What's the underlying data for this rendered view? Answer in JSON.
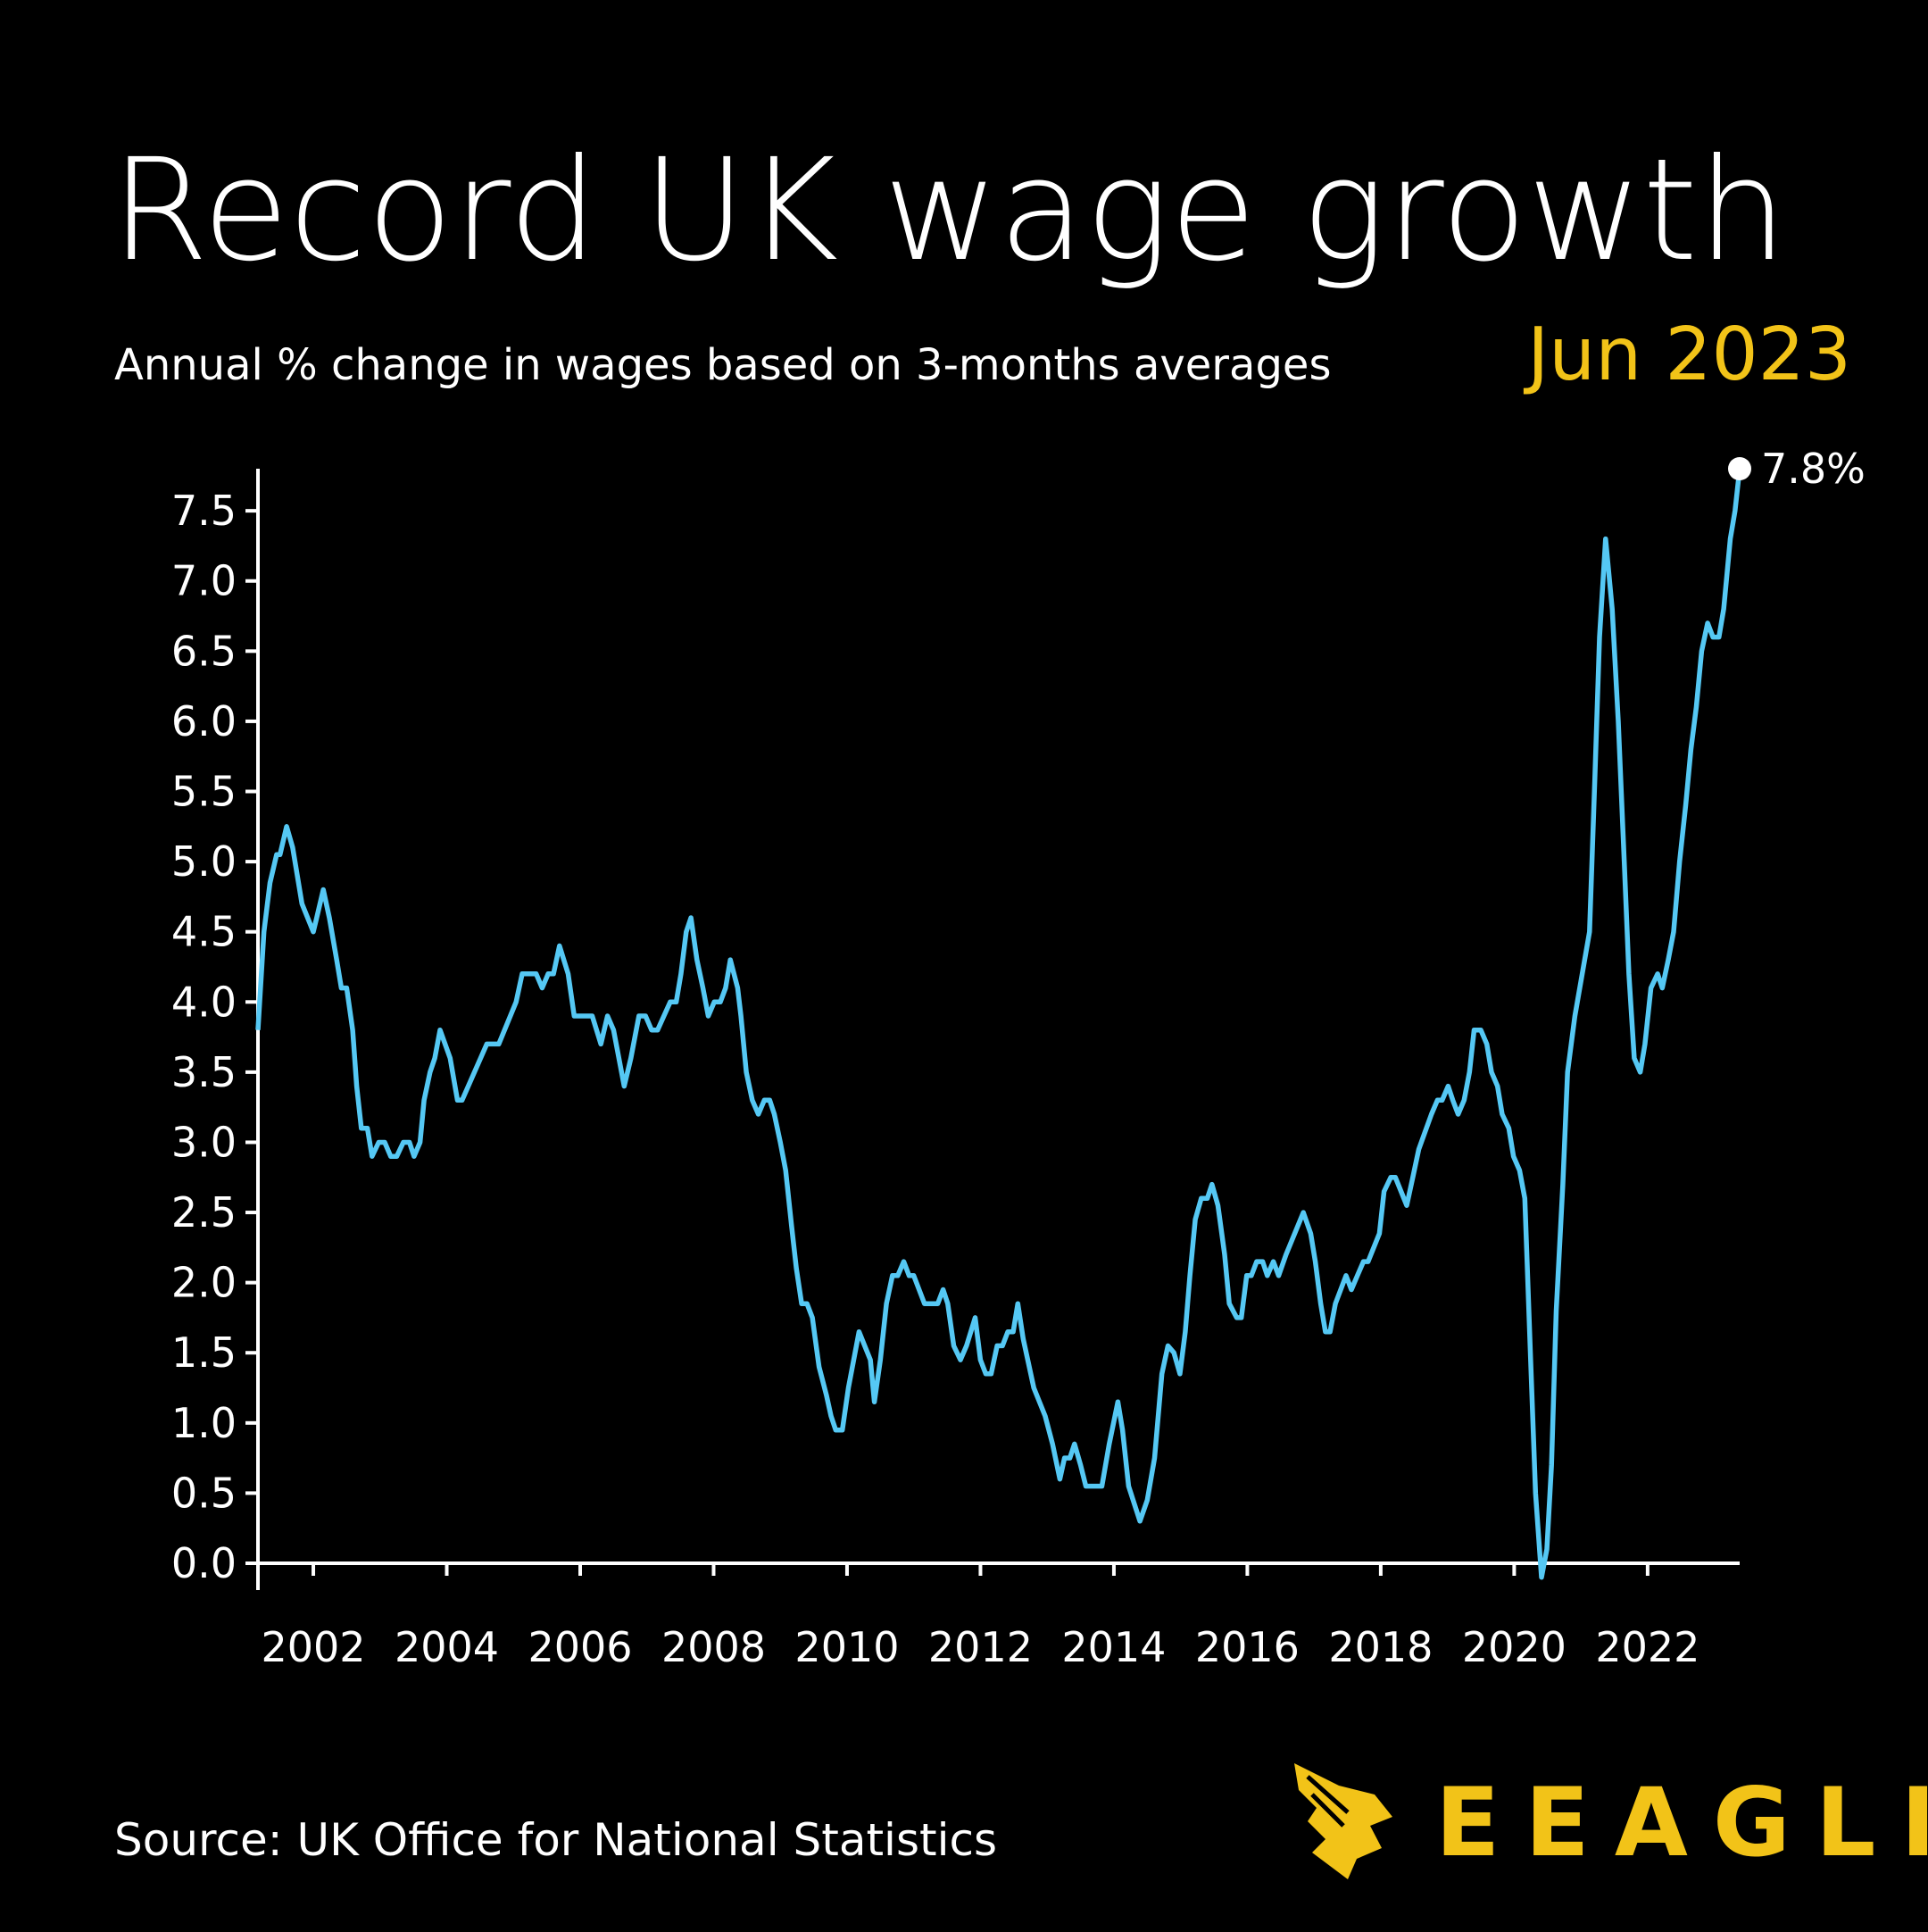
{
  "chart_data": {
    "type": "line",
    "title": "Record UK wage growth",
    "subtitle": "Annual % change in wages based on 3-months averages",
    "date_label": "Jun 2023",
    "end_label": "7.8%",
    "source": "Source: UK Office for National Statistics",
    "logo": "EEAGLI",
    "color": "#55c8f4",
    "xlim": [
      2001.17,
      2023.38
    ],
    "xticks": [
      2002,
      2004,
      2006,
      2008,
      2010,
      2012,
      2014,
      2016,
      2018,
      2020,
      2022
    ],
    "ylim": [
      0,
      7.8
    ],
    "yticks": [
      {
        "value": 0,
        "label": "0.0"
      },
      0.5,
      {
        "value": 1,
        "label": "1.0"
      },
      1.5,
      {
        "value": 2,
        "label": "2.0"
      },
      2.5,
      {
        "value": 3,
        "label": "3.0"
      },
      3.5,
      {
        "value": 4,
        "label": "4.0"
      },
      4.5,
      {
        "value": 5,
        "label": "5.0"
      },
      5.5,
      {
        "value": 6,
        "label": "6.0"
      },
      6.5,
      {
        "value": 7,
        "label": "7.0"
      },
      7.5
    ],
    "grid": false,
    "x": [
      2001.17,
      2001.26,
      2001.35,
      2001.45,
      2001.5,
      2001.6,
      2001.69,
      2001.83,
      2002.0,
      2002.05,
      2002.15,
      2002.24,
      2002.35,
      2002.42,
      2002.5,
      2002.59,
      2002.65,
      2002.72,
      2002.81,
      2002.88,
      2002.98,
      2003.07,
      2003.16,
      2003.25,
      2003.35,
      2003.44,
      2003.51,
      2003.6,
      2003.66,
      2003.75,
      2003.82,
      2003.9,
      2004.05,
      2004.16,
      2004.23,
      2004.6,
      2004.78,
      2005.04,
      2005.13,
      2005.34,
      2005.43,
      2005.52,
      2005.6,
      2005.69,
      2005.82,
      2005.91,
      2006.18,
      2006.31,
      2006.41,
      2006.5,
      2006.66,
      2006.76,
      2006.88,
      2006.98,
      2007.07,
      2007.16,
      2007.35,
      2007.44,
      2007.51,
      2007.59,
      2007.66,
      2007.75,
      2007.84,
      2007.92,
      2008.01,
      2008.1,
      2008.18,
      2008.25,
      2008.36,
      2008.41,
      2008.49,
      2008.58,
      2008.67,
      2008.76,
      2008.84,
      2008.91,
      2009.0,
      2009.08,
      2009.17,
      2009.24,
      2009.32,
      2009.4,
      2009.48,
      2009.58,
      2009.69,
      2009.76,
      2009.83,
      2009.93,
      2010.02,
      2010.18,
      2010.35,
      2010.41,
      2010.5,
      2010.59,
      2010.68,
      2010.76,
      2010.85,
      2010.93,
      2011.0,
      2011.16,
      2011.36,
      2011.44,
      2011.51,
      2011.6,
      2011.7,
      2011.79,
      2011.92,
      2012.0,
      2012.08,
      2012.16,
      2012.25,
      2012.33,
      2012.41,
      2012.49,
      2012.56,
      2012.64,
      2012.8,
      2012.97,
      2013.08,
      2013.19,
      2013.26,
      2013.34,
      2013.41,
      2013.5,
      2013.58,
      2013.82,
      2013.93,
      2014.06,
      2014.13,
      2014.22,
      2014.39,
      2014.5,
      2014.61,
      2014.72,
      2014.81,
      2014.9,
      2014.99,
      2015.07,
      2015.14,
      2015.22,
      2015.31,
      2015.4,
      2015.47,
      2015.56,
      2015.66,
      2015.73,
      2015.84,
      2015.91,
      2015.99,
      2016.06,
      2016.14,
      2016.23,
      2016.3,
      2016.39,
      2016.47,
      2016.58,
      2016.84,
      2016.95,
      2017.02,
      2017.1,
      2017.17,
      2017.24,
      2017.32,
      2017.48,
      2017.56,
      2017.65,
      2017.74,
      2017.81,
      2017.98,
      2018.05,
      2018.15,
      2018.22,
      2018.39,
      2018.48,
      2018.57,
      2018.76,
      2018.85,
      2018.92,
      2019.01,
      2019.08,
      2019.16,
      2019.25,
      2019.33,
      2019.4,
      2019.5,
      2019.59,
      2019.66,
      2019.75,
      2019.82,
      2019.92,
      2019.99,
      2020.08,
      2020.16,
      2020.25,
      2020.32,
      2020.41,
      2020.49,
      2020.56,
      2020.63,
      2020.73,
      2020.8,
      2020.91,
      2021.13,
      2021.21,
      2021.28,
      2021.37,
      2021.47,
      2021.56,
      2021.65,
      2021.72,
      2021.8,
      2021.89,
      2021.96,
      2022.05,
      2022.15,
      2022.22,
      2022.31,
      2022.39,
      2022.48,
      2022.57,
      2022.65,
      2022.73,
      2022.81,
      2022.9,
      2022.98,
      2023.07,
      2023.14,
      2023.24,
      2023.31,
      2023.38
    ],
    "values": [
      3.8,
      4.5,
      4.85,
      5.05,
      5.05,
      5.25,
      5.1,
      4.7,
      4.5,
      4.6,
      4.8,
      4.6,
      4.3,
      4.1,
      4.1,
      3.8,
      3.4,
      3.1,
      3.1,
      2.9,
      3.0,
      3.0,
      2.9,
      2.9,
      3.0,
      3.0,
      2.9,
      3.0,
      3.3,
      3.5,
      3.6,
      3.8,
      3.6,
      3.3,
      3.3,
      3.7,
      3.7,
      4.0,
      4.2,
      4.2,
      4.1,
      4.2,
      4.2,
      4.4,
      4.2,
      3.9,
      3.9,
      3.7,
      3.9,
      3.8,
      3.4,
      3.6,
      3.9,
      3.9,
      3.8,
      3.8,
      4.0,
      4.0,
      4.2,
      4.5,
      4.6,
      4.3,
      4.1,
      3.9,
      4.0,
      4.0,
      4.1,
      4.3,
      4.1,
      3.9,
      3.5,
      3.3,
      3.2,
      3.3,
      3.3,
      3.2,
      3.0,
      2.8,
      2.4,
      2.1,
      1.85,
      1.85,
      1.75,
      1.4,
      1.2,
      1.05,
      0.95,
      0.95,
      1.25,
      1.65,
      1.45,
      1.15,
      1.45,
      1.85,
      2.05,
      2.05,
      2.15,
      2.05,
      2.05,
      1.85,
      1.85,
      1.95,
      1.85,
      1.55,
      1.45,
      1.55,
      1.75,
      1.45,
      1.35,
      1.35,
      1.55,
      1.55,
      1.65,
      1.65,
      1.85,
      1.6,
      1.25,
      1.05,
      0.85,
      0.6,
      0.75,
      0.75,
      0.85,
      0.7,
      0.55,
      0.55,
      0.85,
      1.15,
      0.95,
      0.55,
      0.3,
      0.45,
      0.75,
      1.35,
      1.55,
      1.5,
      1.35,
      1.65,
      2.05,
      2.45,
      2.6,
      2.6,
      2.7,
      2.55,
      2.2,
      1.85,
      1.75,
      1.75,
      2.05,
      2.05,
      2.15,
      2.15,
      2.05,
      2.15,
      2.05,
      2.2,
      2.5,
      2.35,
      2.15,
      1.85,
      1.65,
      1.65,
      1.85,
      2.05,
      1.95,
      2.05,
      2.15,
      2.15,
      2.35,
      2.65,
      2.75,
      2.75,
      2.55,
      2.75,
      2.95,
      3.2,
      3.3,
      3.3,
      3.4,
      3.3,
      3.2,
      3.3,
      3.5,
      3.8,
      3.8,
      3.7,
      3.5,
      3.4,
      3.2,
      3.1,
      2.9,
      2.8,
      2.6,
      1.4,
      0.5,
      -0.1,
      0.1,
      0.7,
      1.8,
      2.7,
      3.5,
      3.9,
      4.5,
      5.6,
      6.6,
      7.3,
      6.8,
      6.0,
      5.0,
      4.2,
      3.6,
      3.5,
      3.7,
      4.1,
      4.2,
      4.1,
      4.3,
      4.5,
      5.0,
      5.4,
      5.8,
      6.1,
      6.5,
      6.7,
      6.6,
      6.6,
      6.8,
      7.3,
      7.5,
      7.8
    ]
  }
}
